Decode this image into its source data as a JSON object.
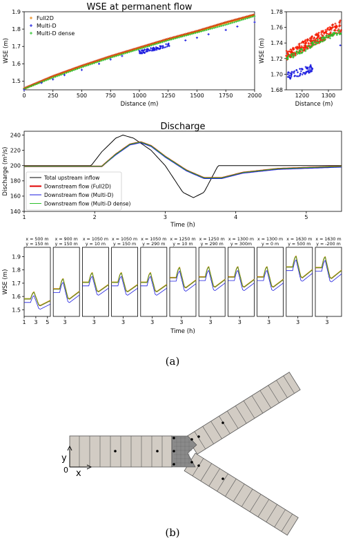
{
  "panel_labels": {
    "a": "(a)",
    "b": "(b)"
  },
  "chart_data": [
    {
      "id": "wse-permanent",
      "type": "scatter",
      "title": "WSE at permanent flow",
      "xlabel": "Distance (m)",
      "ylabel": "WSE (m)",
      "xlim": [
        0,
        2000
      ],
      "ylim": [
        1.45,
        1.9
      ],
      "xticks": [
        0,
        250,
        500,
        750,
        1000,
        1250,
        1500,
        1750,
        2000
      ],
      "yticks": [
        1.5,
        1.6,
        1.7,
        1.8,
        1.9
      ],
      "legend": "top-left",
      "series": [
        {
          "name": "Full2D",
          "marker": "+",
          "color": "#e8820c",
          "points": [
            [
              0,
              1.455
            ],
            [
              250,
              1.525
            ],
            [
              500,
              1.585
            ],
            [
              750,
              1.64
            ],
            [
              1000,
              1.69
            ],
            [
              1250,
              1.74
            ],
            [
              1500,
              1.785
            ],
            [
              1750,
              1.835
            ],
            [
              2000,
              1.88
            ]
          ]
        },
        {
          "name": "Multi-D",
          "marker": "+",
          "color": "#1a1adf",
          "points": [
            [
              0,
              1.45
            ],
            [
              150,
              1.49
            ],
            [
              250,
              1.51
            ],
            [
              350,
              1.535
            ],
            [
              500,
              1.565
            ],
            [
              650,
              1.6
            ],
            [
              750,
              1.625
            ],
            [
              850,
              1.645
            ],
            [
              1000,
              1.675
            ],
            [
              1100,
              1.69
            ],
            [
              1250,
              1.71
            ],
            [
              1400,
              1.735
            ],
            [
              1500,
              1.75
            ],
            [
              1600,
              1.77
            ],
            [
              1750,
              1.795
            ],
            [
              1850,
              1.815
            ],
            [
              2000,
              1.84
            ]
          ]
        },
        {
          "name": "Multi-D dense",
          "marker": "+",
          "color": "#2bc02b",
          "points": [
            [
              0,
              1.455
            ],
            [
              250,
              1.52
            ],
            [
              500,
              1.58
            ],
            [
              750,
              1.635
            ],
            [
              1000,
              1.685
            ],
            [
              1250,
              1.735
            ],
            [
              1500,
              1.78
            ],
            [
              1750,
              1.825
            ],
            [
              2000,
              1.875
            ]
          ]
        }
      ]
    },
    {
      "id": "wse-zoom",
      "type": "scatter",
      "title": "",
      "xlabel": "Distance (m)",
      "ylabel": "WSE (m)",
      "xlim": [
        1140,
        1350
      ],
      "ylim": [
        1.68,
        1.78
      ],
      "xticks": [
        1200,
        1300
      ],
      "yticks": [
        1.68,
        1.7,
        1.72,
        1.74,
        1.76,
        1.78
      ],
      "series": [
        {
          "name": "Full2D",
          "color": "#e8820c",
          "band_lower": [
            [
              1140,
              1.718
            ],
            [
              1350,
              1.755
            ]
          ],
          "band_upper": [
            [
              1140,
              1.73
            ],
            [
              1350,
              1.77
            ]
          ]
        },
        {
          "name": "Multi-D",
          "color": "#1a1adf",
          "cluster_center": [
            1185,
            1.703
          ],
          "cluster_spread": [
            45,
            0.008
          ]
        },
        {
          "name": "Multi-D dense",
          "color": "#2bc02b",
          "points": [
            [
              1140,
              1.72
            ],
            [
              1200,
              1.73
            ],
            [
              1250,
              1.74
            ],
            [
              1300,
              1.748
            ],
            [
              1350,
              1.755
            ]
          ]
        }
      ]
    },
    {
      "id": "discharge",
      "type": "line",
      "title": "Discharge",
      "xlabel": "Time (h)",
      "ylabel": "Discharge (m³/s)",
      "xlim": [
        1,
        5.5
      ],
      "ylim": [
        140,
        245
      ],
      "xticks": [
        1,
        2,
        3,
        4,
        5
      ],
      "yticks": [
        140,
        160,
        180,
        200,
        220,
        240
      ],
      "legend": "lower-left",
      "series": [
        {
          "name": "Total upstream inflow",
          "color": "#000000",
          "width": 1,
          "points": [
            [
              1,
              200
            ],
            [
              1.95,
              200
            ],
            [
              2.1,
              218
            ],
            [
              2.3,
              236
            ],
            [
              2.4,
              240
            ],
            [
              2.55,
              236
            ],
            [
              2.8,
              220
            ],
            [
              3,
              200
            ],
            [
              3.25,
              165
            ],
            [
              3.4,
              158
            ],
            [
              3.55,
              165
            ],
            [
              3.75,
              200
            ],
            [
              5.5,
              200
            ]
          ]
        },
        {
          "name": "Downstream flow (Full2D)",
          "color": "#e00000",
          "width": 2,
          "points": [
            [
              1,
              199
            ],
            [
              2.1,
              199
            ],
            [
              2.3,
              215
            ],
            [
              2.5,
              228
            ],
            [
              2.65,
              231
            ],
            [
              2.8,
              226
            ],
            [
              3,
              212
            ],
            [
              3.3,
              194
            ],
            [
              3.55,
              184
            ],
            [
              3.8,
              184
            ],
            [
              4.1,
              191
            ],
            [
              4.6,
              196
            ],
            [
              5.5,
              199
            ]
          ]
        },
        {
          "name": "Downstream flow (Multi-D)",
          "color": "#1a1adf",
          "width": 1,
          "points": [
            [
              1,
              199
            ],
            [
              2.1,
              199
            ],
            [
              2.3,
              214
            ],
            [
              2.5,
              227
            ],
            [
              2.65,
              230
            ],
            [
              2.8,
              225
            ],
            [
              3,
              211
            ],
            [
              3.3,
              193
            ],
            [
              3.55,
              183
            ],
            [
              3.8,
              183
            ],
            [
              4.1,
              190
            ],
            [
              4.6,
              195
            ],
            [
              5.5,
              198
            ]
          ]
        },
        {
          "name": "Downstream flow (Multi-D dense)",
          "color": "#2bc02b",
          "width": 1,
          "points": [
            [
              1,
              199
            ],
            [
              2.1,
              199
            ],
            [
              2.3,
              215
            ],
            [
              2.5,
              228
            ],
            [
              2.65,
              231
            ],
            [
              2.8,
              226
            ],
            [
              3,
              212
            ],
            [
              3.3,
              194
            ],
            [
              3.55,
              184
            ],
            [
              3.8,
              184
            ],
            [
              4.1,
              191
            ],
            [
              4.6,
              196
            ],
            [
              5.5,
              199
            ]
          ]
        }
      ]
    },
    {
      "id": "wse-probes",
      "type": "line",
      "ylabel": "WSE (m)",
      "xlabel": "Time (h)",
      "ylim": [
        1.45,
        1.97
      ],
      "yticks": [
        1.5,
        1.6,
        1.7,
        1.8,
        1.9
      ],
      "xticks": [
        1,
        3,
        5
      ],
      "panels": [
        {
          "x": "x = 500 m",
          "y": "y = 150 m",
          "base": 1.58,
          "peak": 0.05
        },
        {
          "x": "x = 900 m",
          "y": "y = 150 m",
          "base": 1.655,
          "peak": 0.075
        },
        {
          "x": "x = 1050 m",
          "y": "y = 10 m",
          "base": 1.705,
          "peak": 0.07
        },
        {
          "x": "x = 1050 m",
          "y": "y = 150 m",
          "base": 1.705,
          "peak": 0.07
        },
        {
          "x": "x = 1050 m",
          "y": "y = 290 m",
          "base": 1.705,
          "peak": 0.07
        },
        {
          "x": "x = 1250 m",
          "y": "y = 10 m",
          "base": 1.74,
          "peak": 0.075
        },
        {
          "x": "x = 1250 m",
          "y": "y = 290 m",
          "base": 1.745,
          "peak": 0.075
        },
        {
          "x": "x = 1300 m",
          "y": "y = 300m",
          "base": 1.745,
          "peak": 0.075
        },
        {
          "x": "x = 1300 m",
          "y": "y = 0 m",
          "base": 1.745,
          "peak": 0.075
        },
        {
          "x": "x = 1630 m",
          "y": "y = 500 m",
          "base": 1.82,
          "peak": 0.08
        },
        {
          "x": "x = 1630 m",
          "y": "y = -200 m",
          "base": 1.815,
          "peak": 0.08
        }
      ]
    }
  ],
  "diagram": {
    "y_label": "y",
    "x_label": "x",
    "origin_label": "0"
  }
}
